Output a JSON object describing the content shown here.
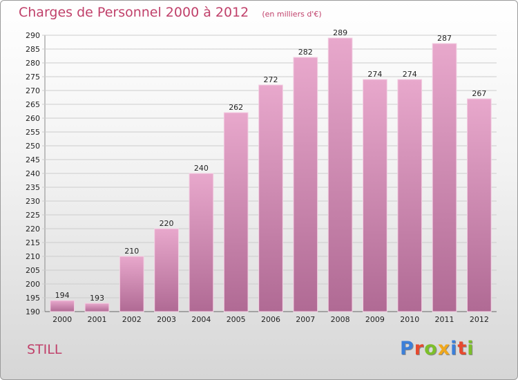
{
  "header": {
    "title": "Charges de Personnel 2000 à 2012",
    "subtitle": "(en milliers d'€)"
  },
  "footer": {
    "commune": "STILL",
    "logo": "Proxiti",
    "logo_colors": [
      "#3b7fd9",
      "#e64a2e",
      "#7cbf2a",
      "#f0a81c",
      "#3b7fd9",
      "#e64a2e",
      "#7cbf2a"
    ]
  },
  "colors": {
    "bar_top": "#e8a8cc",
    "bar_bottom": "#b06a94",
    "accent": "#c0406a",
    "grid": "#cccccc"
  },
  "chart_data": {
    "type": "bar",
    "categories": [
      "2000",
      "2001",
      "2002",
      "2003",
      "2004",
      "2005",
      "2006",
      "2007",
      "2008",
      "2009",
      "2010",
      "2011",
      "2012"
    ],
    "values": [
      194,
      193,
      210,
      220,
      240,
      262,
      272,
      282,
      289,
      274,
      274,
      287,
      267
    ],
    "ylim": [
      190,
      290
    ],
    "ytick_step": 5,
    "grid": true,
    "data_labels": true
  }
}
